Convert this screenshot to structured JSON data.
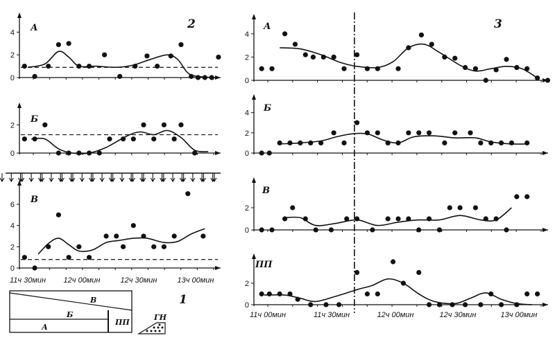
{
  "figure": {
    "left_number": "2",
    "right_number": "3",
    "inset_number": "1"
  },
  "inset": {
    "labels": [
      "В",
      "Б",
      "ПП",
      "А",
      "ГН"
    ]
  },
  "chart_data": [
    {
      "id": "L-A",
      "type": "scatter",
      "panel_label": "А",
      "x_unit": "minutes after 11ч 30мин",
      "xlim": [
        -5,
        110
      ],
      "ylim": [
        0,
        5
      ],
      "yticks": [
        0,
        2,
        4
      ],
      "baseline": 0.9,
      "points": [
        [
          -2,
          1.0
        ],
        [
          4,
          0.1
        ],
        [
          12,
          1.0
        ],
        [
          18,
          2.9
        ],
        [
          24,
          3.0
        ],
        [
          30,
          1.0
        ],
        [
          36,
          1.0
        ],
        [
          45,
          2.0
        ],
        [
          54,
          0.1
        ],
        [
          63,
          1.0
        ],
        [
          70,
          1.9
        ],
        [
          76,
          1.0
        ],
        [
          84,
          1.9
        ],
        [
          90,
          2.9
        ],
        [
          96,
          0.1
        ],
        [
          100,
          0.0
        ],
        [
          104,
          0.0
        ],
        [
          108,
          0.0
        ],
        [
          112,
          1.8
        ]
      ],
      "curve": [
        [
          0,
          0.9
        ],
        [
          10,
          1.2
        ],
        [
          18,
          2.3
        ],
        [
          24,
          1.8
        ],
        [
          30,
          1.0
        ],
        [
          40,
          1.0
        ],
        [
          52,
          0.9
        ],
        [
          62,
          1.1
        ],
        [
          72,
          1.6
        ],
        [
          82,
          2.0
        ],
        [
          88,
          1.6
        ],
        [
          94,
          0.4
        ],
        [
          100,
          0.1
        ],
        [
          110,
          0.0
        ]
      ],
      "arrows_below": false
    },
    {
      "id": "L-B",
      "type": "scatter",
      "panel_label": "Б",
      "x_unit": "minutes after 11ч 30мин",
      "xlim": [
        -5,
        110
      ],
      "ylim": [
        0,
        3
      ],
      "yticks": [
        0,
        2
      ],
      "baseline": 1.3,
      "points": [
        [
          -2,
          1.0
        ],
        [
          4,
          1.0
        ],
        [
          10,
          2.0
        ],
        [
          18,
          0.0
        ],
        [
          24,
          0.0
        ],
        [
          30,
          0.0
        ],
        [
          36,
          0.0
        ],
        [
          42,
          0.0
        ],
        [
          48,
          1.0
        ],
        [
          56,
          1.0
        ],
        [
          62,
          1.0
        ],
        [
          68,
          2.0
        ],
        [
          74,
          1.0
        ],
        [
          80,
          2.0
        ],
        [
          86,
          1.0
        ],
        [
          90,
          2.0
        ],
        [
          98,
          0.0
        ]
      ],
      "curve": [
        [
          2,
          1.0
        ],
        [
          10,
          1.0
        ],
        [
          18,
          0.3
        ],
        [
          26,
          0.0
        ],
        [
          36,
          0.0
        ],
        [
          46,
          0.4
        ],
        [
          58,
          1.2
        ],
        [
          66,
          1.5
        ],
        [
          74,
          1.3
        ],
        [
          82,
          1.6
        ],
        [
          90,
          1.1
        ],
        [
          98,
          0.2
        ],
        [
          106,
          0.1
        ]
      ],
      "arrows_below": true,
      "arrow_count": 34
    },
    {
      "id": "L-V",
      "type": "scatter",
      "panel_label": "В",
      "x_unit": "minutes after 11ч 30мин",
      "xlim": [
        -5,
        110
      ],
      "ylim": [
        0,
        7.5
      ],
      "yticks": [
        0,
        2,
        4,
        6
      ],
      "baseline": 0.8,
      "points": [
        [
          -2,
          1.0
        ],
        [
          4,
          0.0
        ],
        [
          12,
          2.0
        ],
        [
          18,
          5.0
        ],
        [
          24,
          1.0
        ],
        [
          30,
          2.0
        ],
        [
          36,
          1.0
        ],
        [
          46,
          3.0
        ],
        [
          52,
          3.0
        ],
        [
          56,
          2.0
        ],
        [
          62,
          4.0
        ],
        [
          68,
          3.0
        ],
        [
          74,
          2.0
        ],
        [
          80,
          2.0
        ],
        [
          86,
          3.0
        ],
        [
          94,
          7.0
        ],
        [
          103,
          3.0
        ]
      ],
      "curve": [
        [
          6,
          1.3
        ],
        [
          12,
          2.3
        ],
        [
          18,
          2.8
        ],
        [
          24,
          2.2
        ],
        [
          30,
          1.6
        ],
        [
          38,
          1.7
        ],
        [
          46,
          2.4
        ],
        [
          54,
          2.6
        ],
        [
          62,
          2.8
        ],
        [
          70,
          2.8
        ],
        [
          80,
          2.4
        ],
        [
          88,
          2.5
        ],
        [
          96,
          3.2
        ],
        [
          104,
          3.7
        ]
      ],
      "x_tick_labels": [
        "11ч 30мин",
        "12ч 00мин",
        "12ч 30мин",
        "13ч 00мин"
      ],
      "arrows_below": false
    },
    {
      "id": "R-A",
      "type": "scatter",
      "panel_label": "А",
      "x_unit": "minutes after 11ч 00мин",
      "xlim": [
        -2,
        110
      ],
      "ylim": [
        0,
        5
      ],
      "yticks": [
        0,
        2,
        4
      ],
      "marker_x": 37,
      "points": [
        [
          1,
          1.0
        ],
        [
          5,
          1.0
        ],
        [
          10,
          4.0
        ],
        [
          14,
          3.1
        ],
        [
          18,
          2.2
        ],
        [
          21,
          2.0
        ],
        [
          25,
          2.0
        ],
        [
          29,
          2.0
        ],
        [
          33,
          1.0
        ],
        [
          38,
          2.2
        ],
        [
          42,
          1.0
        ],
        [
          46,
          1.0
        ],
        [
          54,
          1.0
        ],
        [
          58,
          2.8
        ],
        [
          63,
          3.9
        ],
        [
          67,
          3.1
        ],
        [
          72,
          2.0
        ],
        [
          76,
          1.9
        ],
        [
          80,
          1.1
        ],
        [
          84,
          1.0
        ],
        [
          88,
          0.0
        ],
        [
          92,
          0.9
        ],
        [
          96,
          1.8
        ],
        [
          100,
          1.1
        ],
        [
          104,
          1.0
        ],
        [
          108,
          0.2
        ],
        [
          112,
          0.0
        ]
      ],
      "curve": [
        [
          8,
          2.8
        ],
        [
          16,
          2.7
        ],
        [
          24,
          2.2
        ],
        [
          32,
          1.5
        ],
        [
          38,
          1.2
        ],
        [
          46,
          1.1
        ],
        [
          52,
          1.6
        ],
        [
          58,
          2.8
        ],
        [
          64,
          3.1
        ],
        [
          70,
          2.4
        ],
        [
          78,
          1.3
        ],
        [
          84,
          0.8
        ],
        [
          90,
          1.0
        ],
        [
          96,
          1.2
        ],
        [
          102,
          1.0
        ],
        [
          108,
          0.2
        ]
      ]
    },
    {
      "id": "R-B",
      "type": "scatter",
      "panel_label": "Б",
      "x_unit": "minutes after 11ч 00мин",
      "xlim": [
        -2,
        110
      ],
      "ylim": [
        0,
        5
      ],
      "yticks": [
        0,
        2,
        4
      ],
      "marker_x": 37,
      "points": [
        [
          1,
          0.0
        ],
        [
          4,
          0.0
        ],
        [
          8,
          1.0
        ],
        [
          12,
          1.0
        ],
        [
          16,
          1.0
        ],
        [
          20,
          1.0
        ],
        [
          24,
          1.0
        ],
        [
          29,
          2.0
        ],
        [
          33,
          1.0
        ],
        [
          38,
          3.0
        ],
        [
          42,
          2.0
        ],
        [
          46,
          2.0
        ],
        [
          50,
          1.0
        ],
        [
          54,
          1.0
        ],
        [
          58,
          2.0
        ],
        [
          62,
          2.0
        ],
        [
          66,
          2.0
        ],
        [
          72,
          1.0
        ],
        [
          76,
          2.0
        ],
        [
          82,
          2.0
        ],
        [
          86,
          1.0
        ],
        [
          90,
          1.0
        ],
        [
          94,
          1.0
        ],
        [
          98,
          1.0
        ],
        [
          104,
          1.0
        ]
      ],
      "curve": [
        [
          8,
          0.9
        ],
        [
          16,
          1.0
        ],
        [
          24,
          1.2
        ],
        [
          30,
          1.6
        ],
        [
          36,
          1.9
        ],
        [
          42,
          1.9
        ],
        [
          48,
          1.3
        ],
        [
          54,
          1.0
        ],
        [
          60,
          1.6
        ],
        [
          68,
          1.7
        ],
        [
          76,
          1.5
        ],
        [
          84,
          1.5
        ],
        [
          90,
          1.1
        ],
        [
          98,
          0.9
        ],
        [
          104,
          0.9
        ]
      ]
    },
    {
      "id": "R-V",
      "type": "scatter",
      "panel_label": "В",
      "x_unit": "minutes after 11ч 00мин",
      "xlim": [
        -2,
        110
      ],
      "ylim": [
        0,
        4
      ],
      "yticks": [
        0,
        2
      ],
      "marker_x": 37,
      "points": [
        [
          1,
          0.0
        ],
        [
          5,
          0.0
        ],
        [
          10,
          1.0
        ],
        [
          13,
          2.0
        ],
        [
          18,
          1.0
        ],
        [
          22,
          0.0
        ],
        [
          28,
          0.0
        ],
        [
          34,
          1.0
        ],
        [
          38,
          1.0
        ],
        [
          44,
          0.0
        ],
        [
          50,
          1.0
        ],
        [
          54,
          1.0
        ],
        [
          58,
          1.0
        ],
        [
          62,
          0.0
        ],
        [
          66,
          1.0
        ],
        [
          70,
          0.0
        ],
        [
          74,
          2.0
        ],
        [
          78,
          2.0
        ],
        [
          84,
          2.0
        ],
        [
          88,
          1.0
        ],
        [
          92,
          1.0
        ],
        [
          96,
          0.0
        ],
        [
          100,
          3.0
        ],
        [
          104,
          3.0
        ]
      ],
      "curve": [
        [
          10,
          1.1
        ],
        [
          16,
          1.1
        ],
        [
          22,
          0.4
        ],
        [
          30,
          0.6
        ],
        [
          38,
          0.9
        ],
        [
          46,
          0.4
        ],
        [
          54,
          0.7
        ],
        [
          62,
          0.9
        ],
        [
          70,
          0.9
        ],
        [
          78,
          1.3
        ],
        [
          86,
          0.9
        ],
        [
          92,
          0.9
        ],
        [
          98,
          2.0
        ]
      ]
    },
    {
      "id": "R-PP",
      "type": "scatter",
      "panel_label": "ПП",
      "x_unit": "minutes after 11ч 00мин",
      "xlim": [
        -2,
        110
      ],
      "ylim": [
        0,
        4
      ],
      "yticks": [
        0,
        2
      ],
      "marker_x": 37,
      "points": [
        [
          1,
          1.0
        ],
        [
          4,
          1.0
        ],
        [
          8,
          1.0
        ],
        [
          12,
          1.0
        ],
        [
          15,
          0.5
        ],
        [
          20,
          0.0
        ],
        [
          26,
          0.0
        ],
        [
          31,
          0.0
        ],
        [
          38,
          3.0
        ],
        [
          42,
          1.0
        ],
        [
          46,
          1.0
        ],
        [
          52,
          4.0
        ],
        [
          56,
          2.0
        ],
        [
          62,
          3.0
        ],
        [
          66,
          0.0
        ],
        [
          70,
          0.0
        ],
        [
          75,
          0.0
        ],
        [
          80,
          0.0
        ],
        [
          86,
          0.0
        ],
        [
          90,
          1.0
        ],
        [
          94,
          0.0
        ],
        [
          100,
          0.0
        ],
        [
          104,
          1.0
        ],
        [
          108,
          1.0
        ]
      ],
      "curve": [
        [
          2,
          0.9
        ],
        [
          10,
          0.9
        ],
        [
          16,
          0.6
        ],
        [
          22,
          0.3
        ],
        [
          30,
          0.8
        ],
        [
          38,
          1.4
        ],
        [
          44,
          1.8
        ],
        [
          50,
          2.4
        ],
        [
          56,
          2.0
        ],
        [
          62,
          1.0
        ],
        [
          68,
          0.3
        ],
        [
          76,
          0.1
        ],
        [
          82,
          0.6
        ],
        [
          88,
          1.1
        ],
        [
          94,
          0.5
        ],
        [
          100,
          0.1
        ],
        [
          106,
          0.0
        ]
      ],
      "x_tick_labels": [
        "11ч 00мин",
        "11ч 30мин",
        "12ч 00мин",
        "12ч 30мин",
        "13ч 00мин"
      ]
    }
  ]
}
